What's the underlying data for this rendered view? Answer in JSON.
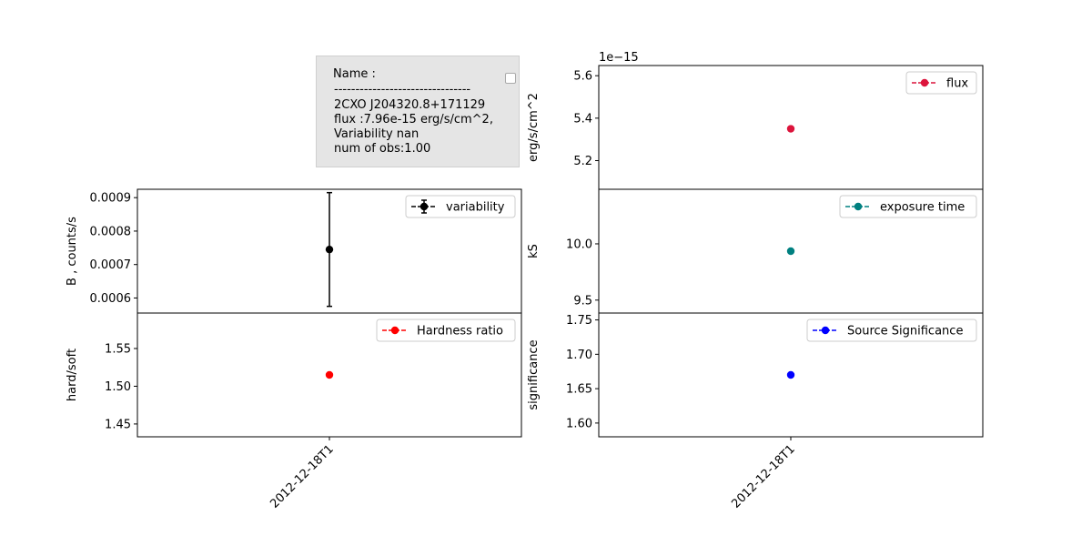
{
  "info": {
    "name_label": "Name :",
    "separator": "--------------------------------",
    "source": "2CXO J204320.8+171129",
    "flux_line": "flux :7.96e-15 erg/s/cm^2,",
    "variability_line": "Variability nan",
    "obs_line": "num of obs:1.00"
  },
  "chart_data": [
    {
      "id": "variability",
      "type": "scatter",
      "series": [
        {
          "name": "variability",
          "x": [
            "2012-12-18T1"
          ],
          "y": [
            0.000745
          ],
          "yerr": [
            0.00017
          ],
          "color": "#000000"
        }
      ],
      "ylabel": "B , counts/s",
      "ylim": [
        0.000555,
        0.000925
      ],
      "yticks": [
        0.0006,
        0.0007,
        0.0008,
        0.0009
      ],
      "yticklabels": [
        "0.0006",
        "0.0007",
        "0.0008",
        "0.0009"
      ],
      "legend": "upper right"
    },
    {
      "id": "hardness",
      "type": "scatter",
      "series": [
        {
          "name": "Hardness ratio",
          "x": [
            "2012-12-18T1"
          ],
          "y": [
            1.515
          ],
          "color": "#ff0000"
        }
      ],
      "ylabel": "hard/soft",
      "ylim": [
        1.433,
        1.597
      ],
      "yticks": [
        1.45,
        1.5,
        1.55
      ],
      "yticklabels": [
        "1.45",
        "1.50",
        "1.55"
      ],
      "xticklabels": [
        "2012-12-18T1"
      ],
      "legend": "upper right"
    },
    {
      "id": "flux",
      "type": "scatter",
      "series": [
        {
          "name": "flux",
          "x": [
            "2012-12-18T1"
          ],
          "y": [
            5.35
          ],
          "color": "#dc143c"
        }
      ],
      "ylabel": "erg/s/cm^2",
      "yoffset": "1e−15",
      "ylim": [
        5.065,
        5.648
      ],
      "yticks": [
        5.2,
        5.4,
        5.6
      ],
      "yticklabels": [
        "5.2",
        "5.4",
        "5.6"
      ],
      "legend": "upper right"
    },
    {
      "id": "exposure",
      "type": "scatter",
      "series": [
        {
          "name": "exposure time",
          "x": [
            "2012-12-18T1"
          ],
          "y": [
            9.935
          ],
          "color": "#008080"
        }
      ],
      "ylabel": "kS",
      "ylim": [
        9.385,
        10.485
      ],
      "yticks": [
        9.5,
        10.0
      ],
      "yticklabels": [
        "9.5",
        "10.0"
      ],
      "legend": "upper right"
    },
    {
      "id": "significance",
      "type": "scatter",
      "series": [
        {
          "name": "Source Significance",
          "x": [
            "2012-12-18T1"
          ],
          "y": [
            1.67
          ],
          "color": "#0000ff"
        }
      ],
      "ylabel": "significance",
      "ylim": [
        1.58,
        1.76
      ],
      "yticks": [
        1.6,
        1.65,
        1.7,
        1.75
      ],
      "yticklabels": [
        "1.60",
        "1.65",
        "1.70",
        "1.75"
      ],
      "xticklabels": [
        "2012-12-18T1"
      ],
      "legend": "upper right"
    }
  ]
}
